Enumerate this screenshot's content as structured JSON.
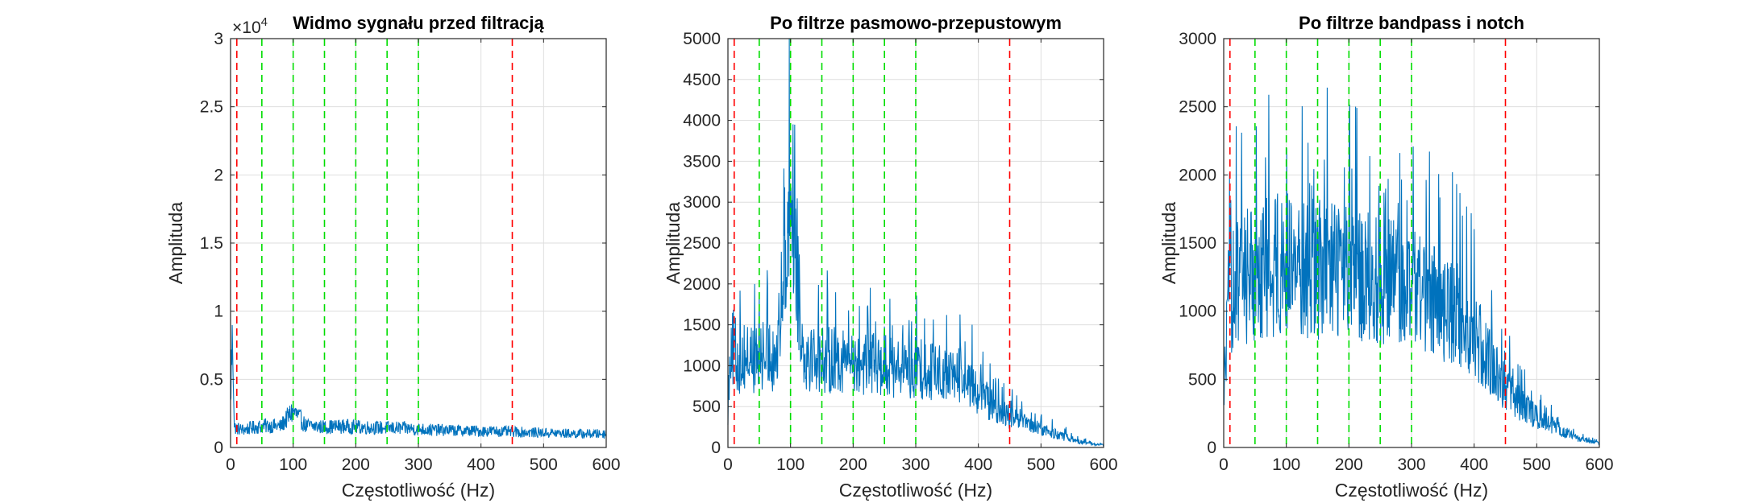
{
  "colors": {
    "signal": "#0072BD",
    "band_edge": "#FF0000",
    "harmonic": "#00DD00",
    "grid": "#DEDEDE",
    "axes": "#262626"
  },
  "chart_data": [
    {
      "type": "line",
      "title": "Widmo sygnału przed filtracją",
      "xlabel": "Częstotliwość (Hz)",
      "ylabel": "Amplituda",
      "xlim": [
        0,
        600
      ],
      "ylim": [
        0,
        30000
      ],
      "xticks": [
        0,
        100,
        200,
        300,
        400,
        500,
        600
      ],
      "xtick_labels": [
        "0",
        "100",
        "200",
        "300",
        "400",
        "500",
        "600"
      ],
      "yticks": [
        0,
        5000,
        10000,
        15000,
        20000,
        25000,
        30000
      ],
      "ytick_labels": [
        "0",
        "0.5",
        "1",
        "1.5",
        "2",
        "2.5",
        "3"
      ],
      "exponent_base": "×10",
      "exponent_power": "4",
      "grid": true,
      "band_edges": [
        10,
        450
      ],
      "harmonic_lines": [
        50,
        100,
        150,
        200,
        250,
        300
      ],
      "series": [
        {
          "x": [
            0,
            3,
            6,
            10,
            20,
            40,
            60,
            80,
            100,
            120,
            150,
            180,
            200,
            240,
            280,
            320,
            360,
            400,
            420,
            450,
            480,
            520,
            560,
            600
          ],
          "y": [
            3000,
            10000,
            1500,
            1400,
            1300,
            1500,
            1600,
            1550,
            2700,
            1600,
            1500,
            1550,
            1500,
            1450,
            1400,
            1300,
            1250,
            1200,
            1200,
            1150,
            1100,
            1050,
            1000,
            1000
          ]
        }
      ]
    },
    {
      "type": "line",
      "title": "Po filtrze pasmowo-przepustowym",
      "xlabel": "Częstotliwość (Hz)",
      "ylabel": "Amplituda",
      "xlim": [
        0,
        600
      ],
      "ylim": [
        0,
        5000
      ],
      "xticks": [
        0,
        100,
        200,
        300,
        400,
        500,
        600
      ],
      "xtick_labels": [
        "0",
        "100",
        "200",
        "300",
        "400",
        "500",
        "600"
      ],
      "yticks": [
        0,
        500,
        1000,
        1500,
        2000,
        2500,
        3000,
        3500,
        4000,
        4500,
        5000
      ],
      "ytick_labels": [
        "0",
        "500",
        "1000",
        "1500",
        "2000",
        "2500",
        "3000",
        "3500",
        "4000",
        "4500",
        "5000"
      ],
      "grid": true,
      "band_edges": [
        10,
        450
      ],
      "harmonic_lines": [
        50,
        100,
        150,
        200,
        250,
        300
      ],
      "series": [
        {
          "x": [
            0,
            5,
            10,
            20,
            40,
            60,
            80,
            100,
            120,
            150,
            180,
            200,
            250,
            300,
            350,
            380,
            400,
            420,
            440,
            450,
            470,
            500,
            530,
            560,
            580,
            600
          ],
          "y": [
            600,
            1900,
            1300,
            1450,
            1450,
            1500,
            1500,
            4550,
            1550,
            1450,
            1450,
            1400,
            1350,
            1300,
            1200,
            1100,
            900,
            700,
            550,
            500,
            400,
            300,
            200,
            100,
            60,
            40
          ]
        }
      ]
    },
    {
      "type": "line",
      "title": "Po filtrze bandpass i notch",
      "xlabel": "Częstotliwość (Hz)",
      "ylabel": "Amplituda",
      "xlim": [
        0,
        600
      ],
      "ylim": [
        0,
        3000
      ],
      "xticks": [
        0,
        100,
        200,
        300,
        400,
        500,
        600
      ],
      "xtick_labels": [
        "0",
        "100",
        "200",
        "300",
        "400",
        "500",
        "600"
      ],
      "yticks": [
        0,
        500,
        1000,
        1500,
        2000,
        2500,
        3000
      ],
      "ytick_labels": [
        "0",
        "500",
        "1000",
        "1500",
        "2000",
        "2500",
        "3000"
      ],
      "grid": true,
      "band_edges": [
        10,
        450
      ],
      "harmonic_lines": [
        50,
        100,
        150,
        200,
        250,
        300
      ],
      "series": [
        {
          "x": [
            0,
            5,
            10,
            20,
            40,
            60,
            80,
            100,
            120,
            150,
            180,
            200,
            250,
            300,
            350,
            380,
            400,
            420,
            440,
            450,
            470,
            500,
            530,
            560,
            580,
            600
          ],
          "y": [
            500,
            1100,
            1500,
            1600,
            1700,
            1750,
            1800,
            1800,
            1800,
            1750,
            1750,
            1700,
            1650,
            1600,
            1400,
            1300,
            1100,
            900,
            700,
            600,
            450,
            300,
            200,
            100,
            60,
            40
          ]
        }
      ]
    }
  ]
}
